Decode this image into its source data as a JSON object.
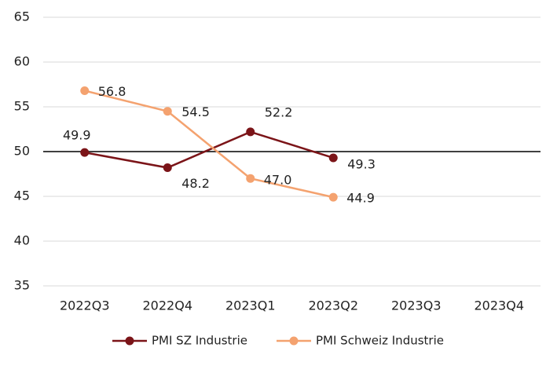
{
  "chart_data": {
    "type": "line",
    "categories": [
      "2022Q3",
      "2022Q4",
      "2023Q1",
      "2023Q2",
      "2023Q3",
      "2023Q4"
    ],
    "series": [
      {
        "name": "PMI SZ Industrie",
        "color": "#7b1418",
        "values": [
          49.9,
          48.2,
          52.2,
          49.3,
          null,
          null
        ],
        "value_labels": [
          "49.9",
          "48.2",
          "52.2",
          "49.3",
          null,
          null
        ]
      },
      {
        "name": "PMI Schweiz Industrie",
        "color": "#f4a26f",
        "values": [
          56.8,
          54.5,
          47.0,
          44.9,
          null,
          null
        ],
        "value_labels": [
          "56.8",
          "54.5",
          "47.0",
          "44.9",
          null,
          null
        ]
      }
    ],
    "ylim": [
      35,
      65
    ],
    "yticks": [
      35,
      40,
      45,
      50,
      55,
      60,
      65
    ],
    "reference_line": 50,
    "grid": true,
    "legend": "bottom"
  }
}
